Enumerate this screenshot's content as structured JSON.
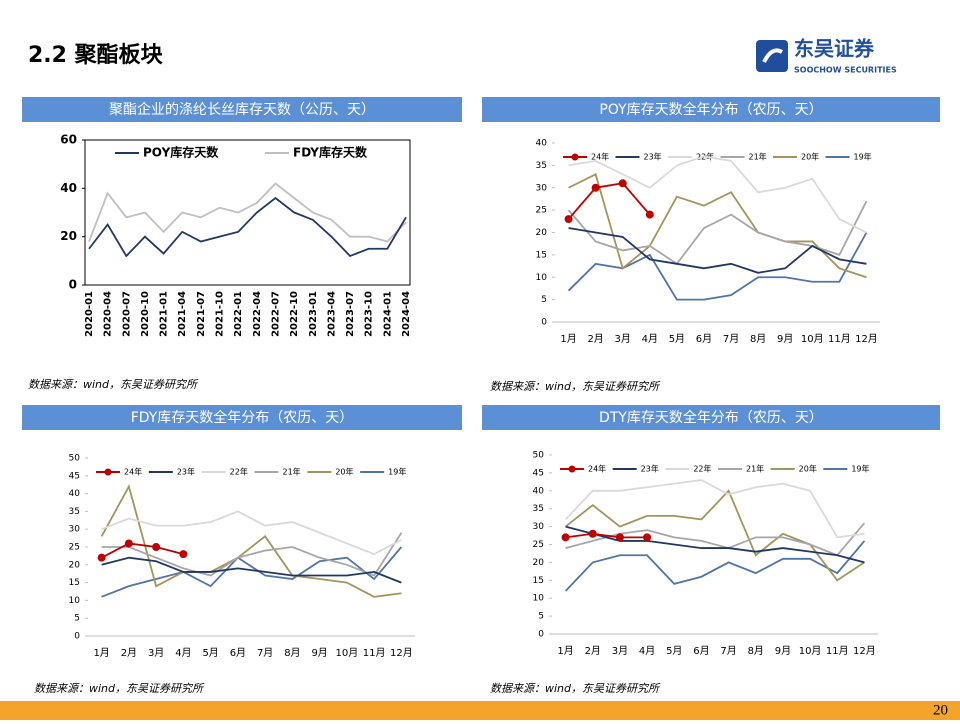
{
  "title": "2.2 聚酯板块",
  "logo": {
    "name": "东吴证券",
    "subtitle": "SOOCHOW SECURITIES"
  },
  "sources": [
    "数据来源：wind，东吴证券研究所",
    "数据来源：wind，东吴证券研究所",
    "数据来源：wind，东吴证券研究所",
    "数据来源：wind，东吴证券研究所"
  ],
  "page_number": "20",
  "chart_data": [
    {
      "type": "line",
      "title": "聚酯企业的涤纶长丝库存天数（公历、天）",
      "legend": "upper left",
      "rotate_x_labels": true,
      "frame": true,
      "categories": [
        "2020-01",
        "2020-04",
        "2020-07",
        "2020-10",
        "2021-01",
        "2021-04",
        "2021-07",
        "2021-10",
        "2022-01",
        "2022-04",
        "2022-07",
        "2022-10",
        "2023-01",
        "2023-04",
        "2023-07",
        "2023-10",
        "2024-01",
        "2024-04"
      ],
      "ylim": [
        0,
        60
      ],
      "yticks": [
        0,
        20,
        40,
        60
      ],
      "series": [
        {
          "name": "POY库存天数",
          "color": "#1f3864",
          "values": [
            15,
            25,
            12,
            20,
            13,
            22,
            18,
            20,
            22,
            30,
            36,
            30,
            27,
            20,
            12,
            15,
            15,
            28
          ]
        },
        {
          "name": "FDY库存天数",
          "color": "#bfbfbf",
          "values": [
            18,
            38,
            28,
            30,
            22,
            30,
            28,
            32,
            30,
            34,
            42,
            36,
            30,
            27,
            20,
            20,
            18,
            26
          ]
        }
      ]
    },
    {
      "type": "line",
      "title": "POY库存天数全年分布（农历、天）",
      "legend": "top",
      "categories": [
        "1月",
        "2月",
        "3月",
        "4月",
        "5月",
        "6月",
        "7月",
        "8月",
        "9月",
        "10月",
        "11月",
        "12月"
      ],
      "ylim": [
        0,
        40
      ],
      "yticks": [
        0,
        5,
        10,
        15,
        20,
        25,
        30,
        35,
        40
      ],
      "series": [
        {
          "name": "24年",
          "color": "#c00000",
          "marker": true,
          "values": [
            23,
            30,
            31,
            24,
            null,
            null,
            null,
            null,
            null,
            null,
            null,
            null
          ]
        },
        {
          "name": "23年",
          "color": "#1f3864",
          "values": [
            21,
            20,
            19,
            14,
            13,
            12,
            13,
            11,
            12,
            17,
            14,
            13
          ]
        },
        {
          "name": "22年",
          "color": "#d9d9d9",
          "values": [
            35,
            36,
            33,
            30,
            35,
            37,
            36,
            29,
            30,
            32,
            23,
            20
          ]
        },
        {
          "name": "21年",
          "color": "#a6a6a6",
          "values": [
            25,
            18,
            16,
            17,
            13,
            21,
            24,
            20,
            18,
            17,
            15,
            27
          ]
        },
        {
          "name": "20年",
          "color": "#a5935a",
          "values": [
            30,
            33,
            12,
            17,
            28,
            26,
            29,
            20,
            18,
            18,
            12,
            10
          ]
        },
        {
          "name": "19年",
          "color": "#4f74a8",
          "values": [
            7,
            13,
            12,
            15,
            5,
            5,
            6,
            10,
            10,
            9,
            9,
            20
          ]
        }
      ]
    },
    {
      "type": "line",
      "title": "FDY库存天数全年分布（农历、天）",
      "legend": "top",
      "categories": [
        "1月",
        "2月",
        "3月",
        "4月",
        "5月",
        "6月",
        "7月",
        "8月",
        "9月",
        "10月",
        "11月",
        "12月"
      ],
      "ylim": [
        0,
        50
      ],
      "yticks": [
        0,
        5,
        10,
        15,
        20,
        25,
        30,
        35,
        40,
        45,
        50
      ],
      "series": [
        {
          "name": "24年",
          "color": "#c00000",
          "marker": true,
          "values": [
            22,
            26,
            25,
            23,
            null,
            null,
            null,
            null,
            null,
            null,
            null,
            null
          ]
        },
        {
          "name": "23年",
          "color": "#1f3864",
          "values": [
            20,
            22,
            21,
            18,
            18,
            19,
            18,
            17,
            17,
            17,
            18,
            15
          ]
        },
        {
          "name": "22年",
          "color": "#d9d9d9",
          "values": [
            30,
            33,
            31,
            31,
            32,
            35,
            31,
            32,
            29,
            26,
            23,
            27
          ]
        },
        {
          "name": "21年",
          "color": "#a6a6a6",
          "values": [
            25,
            25,
            22,
            19,
            17,
            22,
            24,
            25,
            22,
            20,
            17,
            29
          ]
        },
        {
          "name": "20年",
          "color": "#a5935a",
          "values": [
            28,
            42,
            14,
            18,
            18,
            22,
            28,
            17,
            16,
            15,
            11,
            12
          ]
        },
        {
          "name": "19年",
          "color": "#4f74a8",
          "values": [
            11,
            14,
            16,
            18,
            14,
            22,
            17,
            16,
            21,
            22,
            16,
            25
          ]
        }
      ]
    },
    {
      "type": "line",
      "title": "DTY库存天数全年分布（农历、天）",
      "legend": "top",
      "categories": [
        "1月",
        "2月",
        "3月",
        "4月",
        "5月",
        "6月",
        "7月",
        "8月",
        "9月",
        "10月",
        "11月",
        "12月"
      ],
      "ylim": [
        0,
        50
      ],
      "yticks": [
        0,
        5,
        10,
        15,
        20,
        25,
        30,
        35,
        40,
        45,
        50
      ],
      "series": [
        {
          "name": "24年",
          "color": "#c00000",
          "marker": true,
          "values": [
            27,
            28,
            27,
            27,
            null,
            null,
            null,
            null,
            null,
            null,
            null,
            null
          ]
        },
        {
          "name": "23年",
          "color": "#1f3864",
          "values": [
            30,
            28,
            26,
            26,
            25,
            24,
            24,
            23,
            24,
            23,
            22,
            20
          ]
        },
        {
          "name": "22年",
          "color": "#d9d9d9",
          "values": [
            32,
            40,
            40,
            41,
            42,
            43,
            39,
            41,
            42,
            40,
            27,
            28
          ]
        },
        {
          "name": "21年",
          "color": "#a6a6a6",
          "values": [
            24,
            26,
            28,
            29,
            27,
            26,
            24,
            27,
            27,
            25,
            22,
            31
          ]
        },
        {
          "name": "20年",
          "color": "#a5935a",
          "values": [
            30,
            36,
            30,
            33,
            33,
            32,
            40,
            22,
            28,
            25,
            15,
            20
          ]
        },
        {
          "name": "19年",
          "color": "#4f74a8",
          "values": [
            12,
            20,
            22,
            22,
            14,
            16,
            20,
            17,
            21,
            21,
            17,
            26
          ]
        }
      ]
    }
  ]
}
